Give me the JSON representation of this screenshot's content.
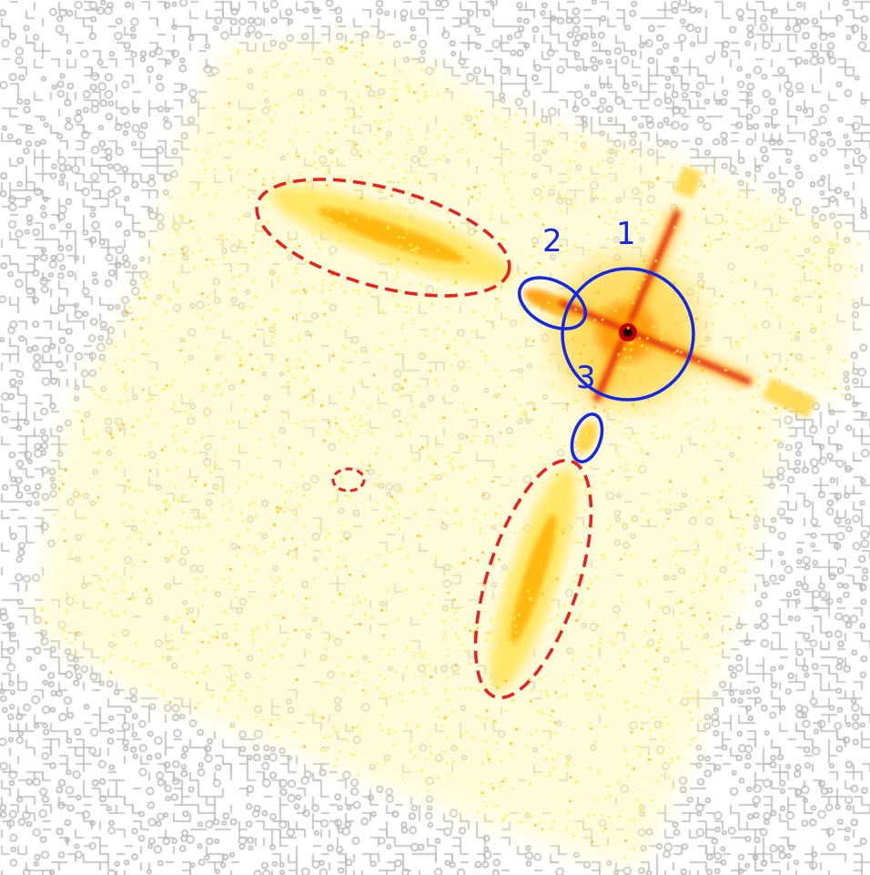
{
  "image": {
    "colors": {
      "background": "#ffffff",
      "noise_contour": "#b9b9b9",
      "diffuse_emission": "#fff27a",
      "bright_emission": "#ffb000",
      "streak": "#e0200c",
      "core": "#1a0000",
      "source_region": "#1428e6",
      "background_region": "#e82020"
    },
    "source_regions": [
      {
        "label": "1"
      },
      {
        "label": "2"
      },
      {
        "label": "3"
      }
    ],
    "background_regions": [
      {
        "style": "dashed"
      },
      {
        "style": "dashed"
      },
      {
        "style": "dashed"
      }
    ]
  }
}
